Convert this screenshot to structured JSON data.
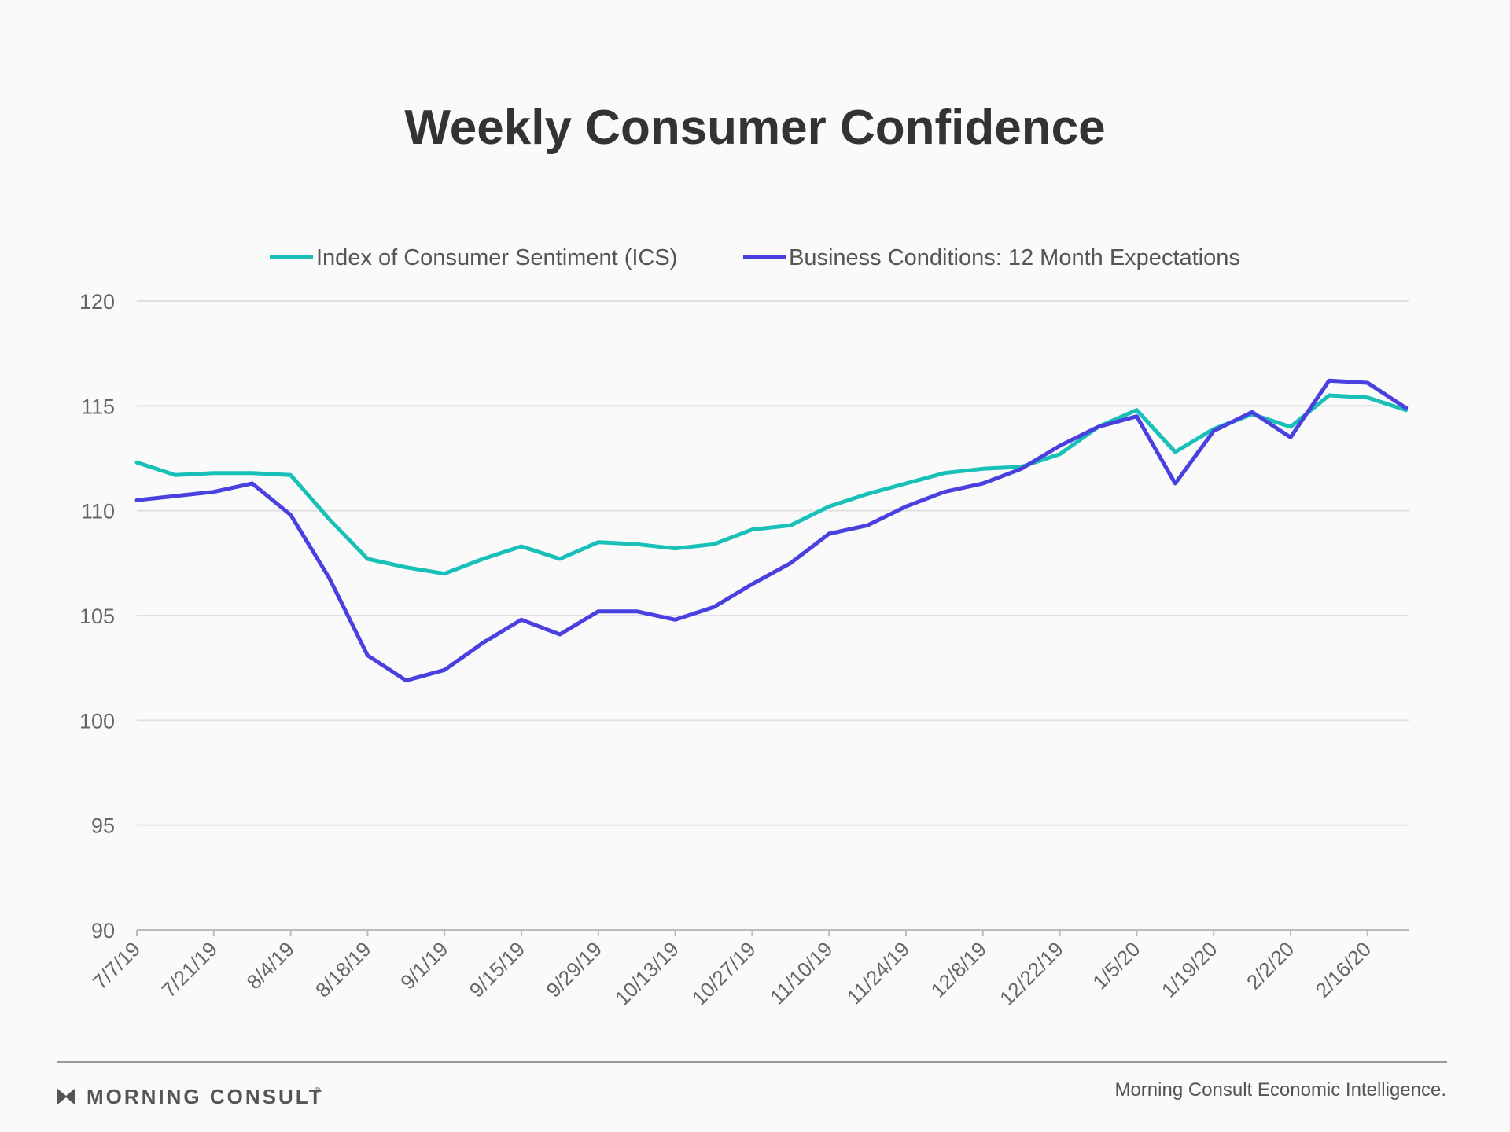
{
  "colors": {
    "ics": "#18c0b8",
    "business": "#4a40e0",
    "grid": "#e0e0e0",
    "axis": "#bbbbbb"
  },
  "chart_data": {
    "type": "line",
    "title": "Weekly Consumer Confidence",
    "xlabel": "",
    "ylabel": "",
    "ylim": [
      90,
      120
    ],
    "yticks": [
      "90",
      "95",
      "100",
      "105",
      "110",
      "115",
      "120"
    ],
    "grid": true,
    "legend_position": "top-center",
    "x": [
      "7/7/19",
      "7/14/19",
      "7/21/19",
      "7/28/19",
      "8/4/19",
      "8/11/19",
      "8/18/19",
      "8/25/19",
      "9/1/19",
      "9/8/19",
      "9/15/19",
      "9/22/19",
      "9/29/19",
      "10/6/19",
      "10/13/19",
      "10/20/19",
      "10/27/19",
      "11/3/19",
      "11/10/19",
      "11/17/19",
      "11/24/19",
      "12/1/19",
      "12/8/19",
      "12/15/19",
      "12/22/19",
      "12/29/19",
      "1/5/20",
      "1/12/20",
      "1/19/20",
      "1/26/20",
      "2/2/20",
      "2/9/20",
      "2/16/20",
      "2/23/20"
    ],
    "x_tick_labels": [
      "7/7/19",
      "7/21/19",
      "8/4/19",
      "8/18/19",
      "9/1/19",
      "9/15/19",
      "9/29/19",
      "10/13/19",
      "10/27/19",
      "11/10/19",
      "11/24/19",
      "12/8/19",
      "12/22/19",
      "1/5/20",
      "1/19/20",
      "2/2/20",
      "2/16/20"
    ],
    "series": [
      {
        "name": "Index of Consumer Sentiment (ICS)",
        "color": "#18c0b8",
        "values": [
          112.3,
          111.7,
          111.8,
          111.8,
          111.7,
          109.6,
          107.7,
          107.3,
          107.0,
          107.7,
          108.3,
          107.7,
          108.5,
          108.4,
          108.2,
          108.4,
          109.1,
          109.3,
          110.2,
          110.8,
          111.3,
          111.8,
          112.0,
          112.1,
          112.7,
          114.0,
          114.8,
          112.8,
          113.9,
          114.6,
          114.0,
          115.5,
          115.4,
          114.8
        ]
      },
      {
        "name": "Business Conditions: 12 Month Expectations",
        "color": "#4a40e0",
        "values": [
          110.5,
          110.7,
          110.9,
          111.3,
          109.8,
          106.8,
          103.1,
          101.9,
          102.4,
          103.7,
          104.8,
          104.1,
          105.2,
          105.2,
          104.8,
          105.4,
          106.5,
          107.5,
          108.9,
          109.3,
          110.2,
          110.9,
          111.3,
          112.0,
          113.1,
          114.0,
          114.5,
          111.3,
          113.8,
          114.7,
          113.5,
          116.2,
          116.1,
          114.9
        ]
      }
    ]
  },
  "footer": {
    "brand": "MORNING CONSULT",
    "trademark": "®",
    "source": "Morning Consult Economic Intelligence."
  }
}
